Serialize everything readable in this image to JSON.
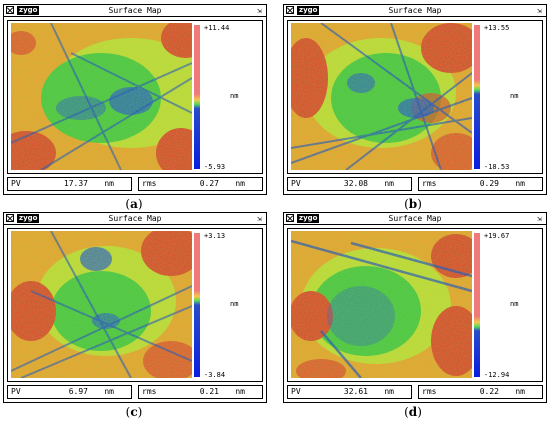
{
  "window": {
    "logo": "zygo",
    "title": "Surface Map"
  },
  "panels": [
    {
      "caption": "a",
      "cb_max": "+11.44",
      "cb_min": "-5.93",
      "unit": "nm",
      "pv_label": "PV",
      "pv_value": "17.37",
      "pv_unit": "nm",
      "rms_label": "rms",
      "rms_value": "0.27",
      "rms_unit": "nm"
    },
    {
      "caption": "b",
      "cb_max": "+13.55",
      "cb_min": "-18.53",
      "unit": "nm",
      "pv_label": "PV",
      "pv_value": "32.08",
      "pv_unit": "nm",
      "rms_label": "rms",
      "rms_value": "0.29",
      "rms_unit": "nm"
    },
    {
      "caption": "c",
      "cb_max": "+3.13",
      "cb_min": "-3.84",
      "unit": "nm",
      "pv_label": "PV",
      "pv_value": "6.97",
      "pv_unit": "nm",
      "rms_label": "rms",
      "rms_value": "0.21",
      "rms_unit": "nm"
    },
    {
      "caption": "d",
      "cb_max": "+19.67",
      "cb_min": "-12.94",
      "unit": "nm",
      "pv_label": "PV",
      "pv_value": "32.61",
      "pv_unit": "nm",
      "rms_label": "rms",
      "rms_value": "0.22",
      "rms_unit": "nm"
    }
  ],
  "colors": {
    "red": "#e2472e",
    "orange": "#f0a030",
    "yellow": "#d9d93a",
    "green": "#3ec23e",
    "blue": "#1a3fd0"
  },
  "icons": {
    "close": "close-box-icon",
    "resize": "resize-icon"
  }
}
